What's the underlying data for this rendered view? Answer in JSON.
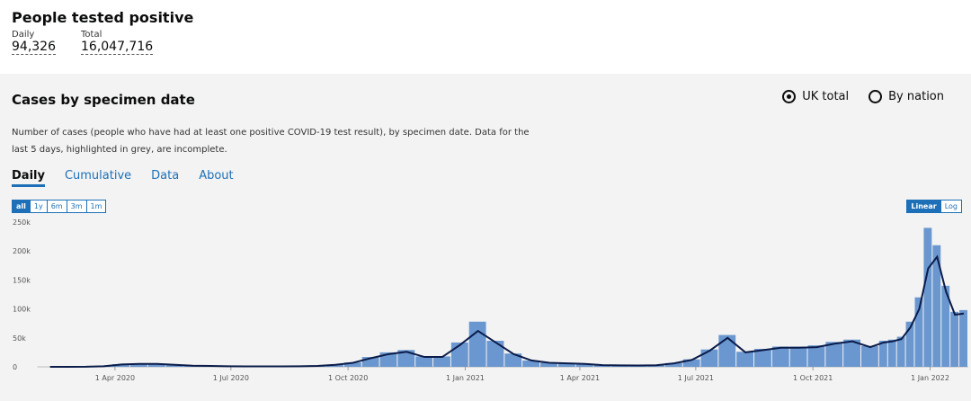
{
  "header": {
    "title": "People tested positive",
    "metrics": [
      {
        "label": "Daily",
        "value": "94,326"
      },
      {
        "label": "Total",
        "value": "16,047,716"
      }
    ]
  },
  "card": {
    "title": "Cases by specimen date",
    "options": [
      {
        "label": "UK total",
        "selected": true
      },
      {
        "label": "By nation",
        "selected": false
      }
    ],
    "description": [
      "Number of cases (people who have had at least one positive COVID-19 test result), by specimen date. Data for the",
      "last 5 days, highlighted in grey, are incomplete."
    ],
    "tabs": [
      "Daily",
      "Cumulative",
      "Data",
      "About"
    ],
    "range_buttons": [
      "all",
      "1y",
      "6m",
      "3m",
      "1m"
    ],
    "scale_buttons": [
      "Linear",
      "Log"
    ]
  },
  "chart_data": {
    "type": "bar",
    "x": [
      "2020-02-03",
      "2020-02-17",
      "2020-03-02",
      "2020-03-16",
      "2020-03-30",
      "2020-04-13",
      "2020-04-27",
      "2020-05-11",
      "2020-05-25",
      "2020-06-08",
      "2020-06-22",
      "2020-07-06",
      "2020-07-20",
      "2020-08-03",
      "2020-08-17",
      "2020-08-31",
      "2020-09-14",
      "2020-09-28",
      "2020-10-12",
      "2020-10-26",
      "2020-11-09",
      "2020-11-23",
      "2020-12-07",
      "2020-12-21",
      "2021-01-04",
      "2021-01-18",
      "2021-02-01",
      "2021-02-15",
      "2021-03-01",
      "2021-03-15",
      "2021-03-29",
      "2021-04-12",
      "2021-04-26",
      "2021-05-10",
      "2021-05-24",
      "2021-06-07",
      "2021-06-21",
      "2021-07-05",
      "2021-07-19",
      "2021-08-02",
      "2021-08-16",
      "2021-08-30",
      "2021-09-13",
      "2021-09-27",
      "2021-10-11",
      "2021-10-25",
      "2021-11-08",
      "2021-11-22",
      "2021-11-29",
      "2021-12-06",
      "2021-12-13",
      "2021-12-20",
      "2021-12-27",
      "2022-01-03",
      "2022-01-10",
      "2022-01-17",
      "2022-01-24"
    ],
    "xlim": [
      "2020-01-31",
      "2022-01-31"
    ],
    "xticks": [
      {
        "value": "2020-04-01",
        "label": "1 Apr 2020"
      },
      {
        "value": "2020-07-01",
        "label": "1 Jul 2020"
      },
      {
        "value": "2020-10-01",
        "label": "1 Oct 2020"
      },
      {
        "value": "2021-01-01",
        "label": "1 Jan 2021"
      },
      {
        "value": "2021-04-01",
        "label": "1 Apr 2021"
      },
      {
        "value": "2021-07-01",
        "label": "1 Jul 2021"
      },
      {
        "value": "2021-10-01",
        "label": "1 Oct 2021"
      },
      {
        "value": "2022-01-01",
        "label": "1 Jan 2022"
      }
    ],
    "ylim": [
      0,
      250000
    ],
    "yticks": [
      0,
      {
        "value": 50000,
        "label": "50k"
      },
      {
        "value": 100000,
        "label": "100k"
      },
      {
        "value": 150000,
        "label": "150k"
      },
      {
        "value": 200000,
        "label": "200k"
      },
      {
        "value": 250000,
        "label": "250k"
      }
    ],
    "series": [
      {
        "type": "bar",
        "color": "#6a97cf",
        "values": [
          0,
          0,
          150,
          1200,
          4500,
          5200,
          5000,
          3600,
          2000,
          1500,
          1000,
          700,
          700,
          800,
          1000,
          1600,
          3800,
          7500,
          17000,
          25000,
          29000,
          18000,
          18000,
          42000,
          78000,
          45000,
          23000,
          11000,
          7000,
          6000,
          5000,
          3000,
          2500,
          2300,
          2900,
          6500,
          13000,
          30000,
          55000,
          26000,
          31000,
          35000,
          35000,
          37000,
          43000,
          47000,
          36000,
          45000,
          47000,
          52000,
          78000,
          120000,
          240000,
          210000,
          140000,
          95000,
          98000
        ]
      },
      {
        "type": "line",
        "color": "#0b1c4a",
        "values": [
          0,
          0,
          100,
          1000,
          4000,
          5000,
          5000,
          3500,
          2000,
          1500,
          1000,
          700,
          700,
          800,
          1000,
          1500,
          3500,
          7000,
          15000,
          22000,
          26000,
          17000,
          17000,
          38000,
          62000,
          42000,
          22000,
          11000,
          7000,
          6000,
          5000,
          3000,
          2500,
          2300,
          2800,
          6000,
          12000,
          28000,
          50000,
          25000,
          29000,
          33000,
          33000,
          34000,
          40000,
          44000,
          34000,
          42000,
          44000,
          48000,
          68000,
          100000,
          170000,
          190000,
          130000,
          90000,
          92000
        ]
      }
    ]
  }
}
